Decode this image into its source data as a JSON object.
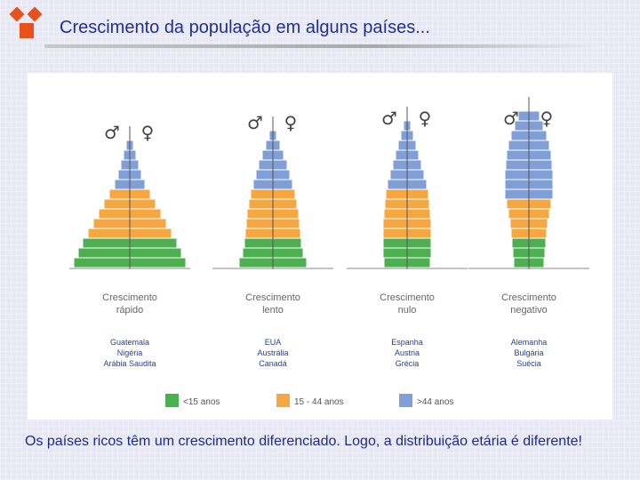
{
  "header": {
    "title": "Crescimento da população em alguns países..."
  },
  "legend": [
    {
      "label": "<15 anos",
      "color": "#4caf50"
    },
    {
      "label": "15 - 44 anos",
      "color": "#f5a742"
    },
    {
      "label": ">44 anos",
      "color": "#7f9fd6"
    }
  ],
  "symbols": {
    "male": "♂",
    "female": "♀"
  },
  "pyramids": [
    {
      "title_line1": "Crescimento",
      "title_line2": "rápido",
      "countries": [
        "Guatemala",
        "Nigéria",
        "Arábia Saudita"
      ],
      "bars": [
        {
          "group": "under15",
          "width": 126
        },
        {
          "group": "under15",
          "width": 116
        },
        {
          "group": "under15",
          "width": 106
        },
        {
          "group": "mid",
          "width": 94
        },
        {
          "group": "mid",
          "width": 82
        },
        {
          "group": "mid",
          "width": 70
        },
        {
          "group": "mid",
          "width": 58
        },
        {
          "group": "mid",
          "width": 46
        },
        {
          "group": "over44",
          "width": 34
        },
        {
          "group": "over44",
          "width": 26
        },
        {
          "group": "over44",
          "width": 20
        },
        {
          "group": "over44",
          "width": 14
        },
        {
          "group": "over44",
          "width": 8
        }
      ]
    },
    {
      "title_line1": "Crescimento",
      "title_line2": "lento",
      "countries": [
        "EUA",
        "Austrália",
        "Canadá"
      ],
      "bars": [
        {
          "group": "under15",
          "width": 76
        },
        {
          "group": "under15",
          "width": 68
        },
        {
          "group": "under15",
          "width": 64
        },
        {
          "group": "mid",
          "width": 62
        },
        {
          "group": "mid",
          "width": 60
        },
        {
          "group": "mid",
          "width": 58
        },
        {
          "group": "mid",
          "width": 54
        },
        {
          "group": "mid",
          "width": 50
        },
        {
          "group": "over44",
          "width": 44
        },
        {
          "group": "over44",
          "width": 38
        },
        {
          "group": "over44",
          "width": 32
        },
        {
          "group": "over44",
          "width": 24
        },
        {
          "group": "over44",
          "width": 16
        },
        {
          "group": "over44",
          "width": 8
        }
      ]
    },
    {
      "title_line1": "Crescimento",
      "title_line2": "nulo",
      "countries": [
        "Espanha",
        "Austria",
        "Grécia"
      ],
      "bars": [
        {
          "group": "under15",
          "width": 52
        },
        {
          "group": "under15",
          "width": 54
        },
        {
          "group": "under15",
          "width": 54
        },
        {
          "group": "mid",
          "width": 54
        },
        {
          "group": "mid",
          "width": 54
        },
        {
          "group": "mid",
          "width": 52
        },
        {
          "group": "mid",
          "width": 50
        },
        {
          "group": "mid",
          "width": 48
        },
        {
          "group": "over44",
          "width": 44
        },
        {
          "group": "over44",
          "width": 38
        },
        {
          "group": "over44",
          "width": 32
        },
        {
          "group": "over44",
          "width": 26
        },
        {
          "group": "over44",
          "width": 20
        },
        {
          "group": "over44",
          "width": 14
        },
        {
          "group": "over44",
          "width": 8
        }
      ]
    },
    {
      "title_line1": "Crescimento",
      "title_line2": "negativo",
      "countries": [
        "Alemanha",
        "Bulgária",
        "Suécia"
      ],
      "bars": [
        {
          "group": "under15",
          "width": 34
        },
        {
          "group": "under15",
          "width": 36
        },
        {
          "group": "under15",
          "width": 38
        },
        {
          "group": "mid",
          "width": 40
        },
        {
          "group": "mid",
          "width": 42
        },
        {
          "group": "mid",
          "width": 46
        },
        {
          "group": "mid",
          "width": 50
        },
        {
          "group": "over44",
          "width": 54
        },
        {
          "group": "over44",
          "width": 54
        },
        {
          "group": "over44",
          "width": 54
        },
        {
          "group": "over44",
          "width": 52
        },
        {
          "group": "over44",
          "width": 50
        },
        {
          "group": "over44",
          "width": 46
        },
        {
          "group": "over44",
          "width": 40
        },
        {
          "group": "over44",
          "width": 32
        },
        {
          "group": "over44",
          "width": 24
        }
      ]
    }
  ],
  "caption": "Os países ricos têm um crescimento diferenciado. Logo, a distribuição etária é diferente!"
}
